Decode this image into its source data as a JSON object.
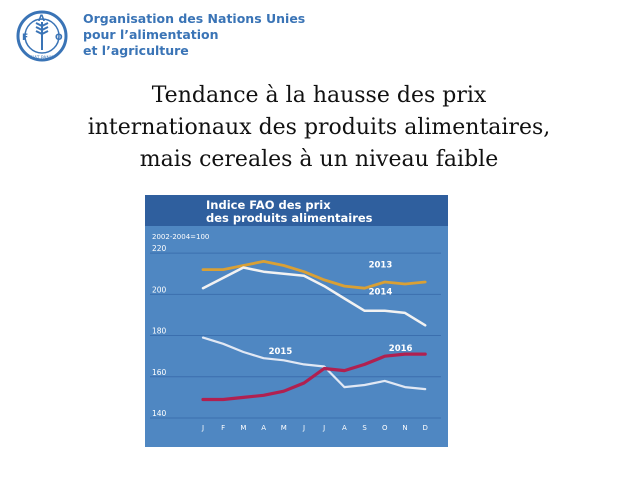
{
  "logo": {
    "letters": "FAO",
    "motto": "FIAT PANIS",
    "org_lines": [
      "Organisation des Nations Unies",
      "pour l’alimentation",
      "et l’agriculture"
    ]
  },
  "slide": {
    "title_lines": [
      "Tendance à la hausse des prix",
      "internationaux des produits alimentaires,",
      "mais  cereales à un niveau faible"
    ]
  },
  "colors": {
    "panel": "#4f87c2",
    "header": "#2f5f9e",
    "grid": "#3b6fae",
    "s2013": "#d9a035",
    "s2014": "#f2f2f2",
    "s2015": "#e1e8f4",
    "s2016": "#b02050",
    "text": "#ffffff"
  },
  "chart_data": {
    "type": "line",
    "title": "Indice FAO des prix des produits alimentaires",
    "title_lines": [
      "Indice FAO des prix",
      "des produits alimentaires"
    ],
    "subtitle": "2002-2004=100",
    "categories": [
      "J",
      "F",
      "M",
      "A",
      "M",
      "J",
      "J",
      "A",
      "S",
      "O",
      "N",
      "D"
    ],
    "yticks": [
      140,
      160,
      180,
      200,
      220
    ],
    "ylim": [
      140,
      222
    ],
    "grid": true,
    "series": [
      {
        "name": "2013",
        "values": [
          212,
          212,
          214,
          216,
          214,
          211,
          207,
          204,
          203,
          206,
          205,
          206
        ]
      },
      {
        "name": "2014",
        "values": [
          203,
          208,
          213,
          211,
          210,
          209,
          204,
          198,
          192,
          192,
          191,
          185
        ]
      },
      {
        "name": "2015",
        "values": [
          179,
          176,
          172,
          169,
          168,
          166,
          165,
          155,
          156,
          158,
          155,
          154
        ]
      },
      {
        "name": "2016",
        "values": [
          149,
          149,
          150,
          151,
          153,
          157,
          164,
          163,
          166,
          170,
          171,
          171
        ]
      }
    ]
  }
}
